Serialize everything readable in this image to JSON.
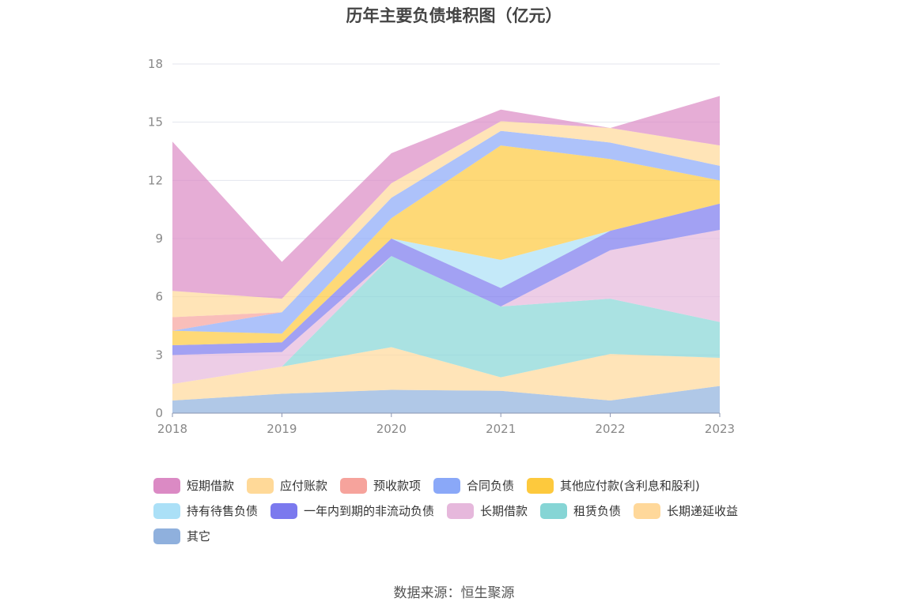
{
  "chart_data": {
    "type": "area",
    "stacked": true,
    "title": "历年主要负债堆积图（亿元）",
    "x": [
      "2018",
      "2019",
      "2020",
      "2021",
      "2022",
      "2023"
    ],
    "ylim": [
      0,
      18
    ],
    "yticks": [
      "0",
      "3",
      "6",
      "9",
      "12",
      "15",
      "18"
    ],
    "grid": true,
    "legend_position": "bottom",
    "series": [
      {
        "name": "其它",
        "color": "#8fb0dd",
        "values": [
          0.65,
          1.0,
          1.2,
          1.15,
          0.65,
          1.4
        ]
      },
      {
        "name": "长期递延收益",
        "color": "#ffd89a",
        "values": [
          0.85,
          1.4,
          2.2,
          0.7,
          2.4,
          1.45
        ]
      },
      {
        "name": "租赁负债",
        "color": "#86d5d5",
        "values": [
          0.0,
          0.0,
          4.7,
          3.65,
          2.85,
          1.85
        ]
      },
      {
        "name": "长期借款",
        "color": "#e6b8dc",
        "values": [
          1.5,
          0.75,
          0.0,
          0.0,
          2.5,
          4.75
        ]
      },
      {
        "name": "一年内到期的非流动负债",
        "color": "#7b79ee",
        "values": [
          0.5,
          0.5,
          0.9,
          0.95,
          1.0,
          1.35
        ]
      },
      {
        "name": "持有待售负债",
        "color": "#abe0f7",
        "values": [
          0.0,
          0.0,
          0.0,
          1.45,
          0.0,
          0.0
        ]
      },
      {
        "name": "其他应付款(含利息和股利)",
        "color": "#fdc93d",
        "values": [
          0.75,
          0.45,
          1.05,
          5.9,
          3.7,
          1.2
        ]
      },
      {
        "name": "合同负债",
        "color": "#8aa8f8",
        "values": [
          0.0,
          1.1,
          1.05,
          0.75,
          0.85,
          0.75
        ]
      },
      {
        "name": "预收款项",
        "color": "#f6a39c",
        "values": [
          0.7,
          0.0,
          0.0,
          0.0,
          0.0,
          0.0
        ]
      },
      {
        "name": "应付账款",
        "color": "#ffd998",
        "values": [
          1.35,
          0.7,
          0.75,
          0.5,
          0.75,
          1.05
        ]
      },
      {
        "name": "短期借款",
        "color": "#db8ac4",
        "values": [
          7.7,
          1.9,
          1.55,
          0.6,
          0.0,
          2.55
        ]
      }
    ]
  },
  "legend": [
    {
      "name": "短期借款",
      "color": "#db8ac4"
    },
    {
      "name": "应付账款",
      "color": "#ffd998"
    },
    {
      "name": "预收款项",
      "color": "#f6a39c"
    },
    {
      "name": "合同负债",
      "color": "#8aa8f8"
    },
    {
      "name": "其他应付款(含利息和股利)",
      "color": "#fdc93d"
    },
    {
      "name": "持有待售负债",
      "color": "#abe0f7"
    },
    {
      "name": "一年内到期的非流动负债",
      "color": "#7b79ee"
    },
    {
      "name": "长期借款",
      "color": "#e6b8dc"
    },
    {
      "name": "租赁负债",
      "color": "#86d5d5"
    },
    {
      "name": "长期递延收益",
      "color": "#ffd89a"
    },
    {
      "name": "其它",
      "color": "#8fb0dd"
    }
  ],
  "source": "数据来源：恒生聚源"
}
